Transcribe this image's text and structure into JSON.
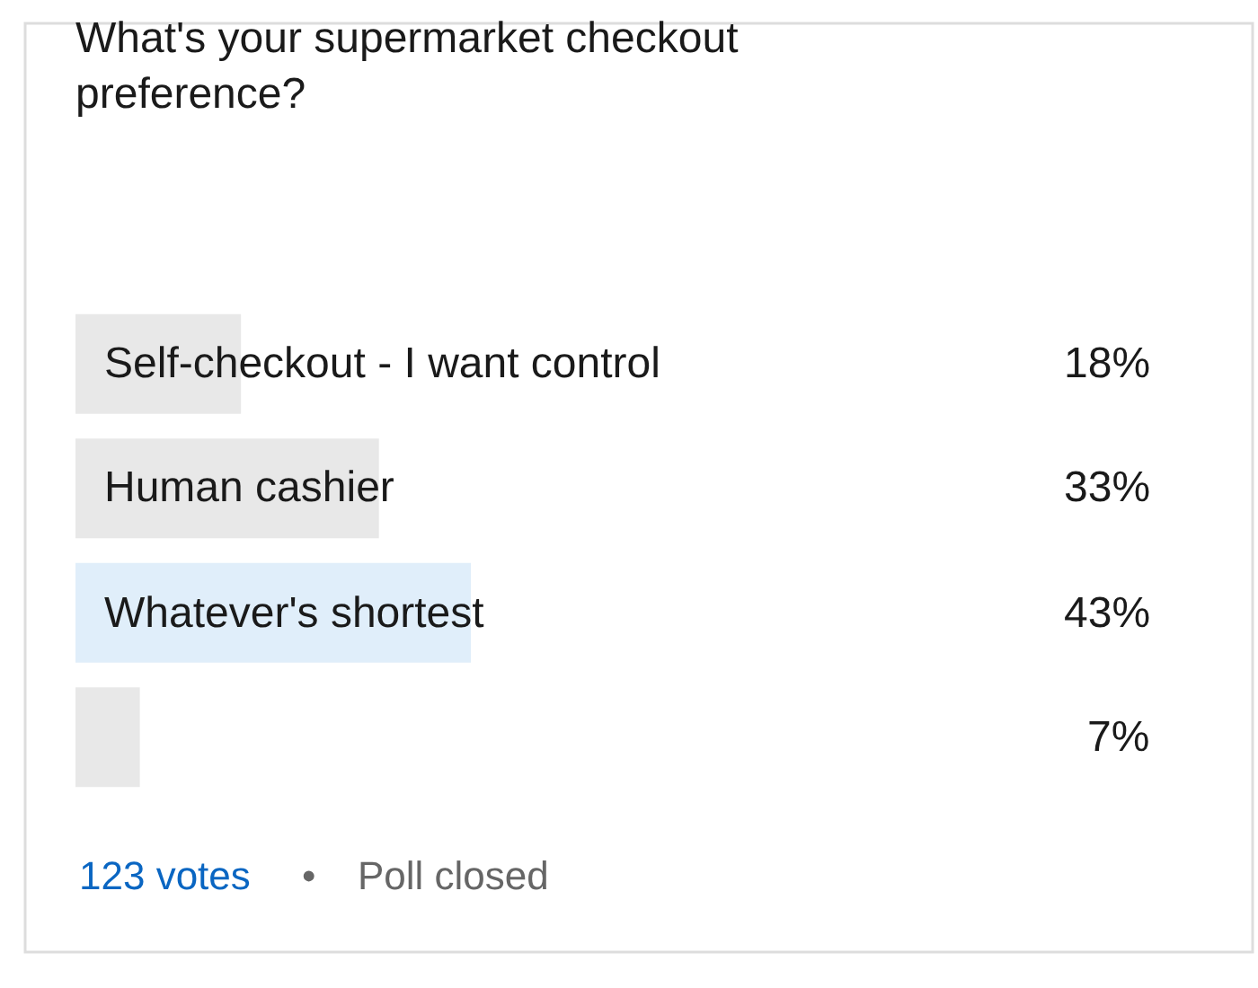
{
  "chart_data": {
    "type": "bar",
    "orientation": "horizontal",
    "title": "What's your supermarket checkout preference?",
    "categories": [
      "Self-checkout - I want control",
      "Human cashier",
      "Whatever's shortest",
      null
    ],
    "values": [
      18,
      33,
      43,
      7
    ],
    "colors": [
      "#e8e8e8",
      "#e8e8e8",
      "#e0eefa",
      "#e8e8e8"
    ],
    "value_labels": [
      "18%",
      "33%",
      "43%",
      "7%"
    ],
    "tick_labels": false,
    "legend": false,
    "annotations": [
      "123 votes",
      "•",
      "Poll closed"
    ]
  }
}
